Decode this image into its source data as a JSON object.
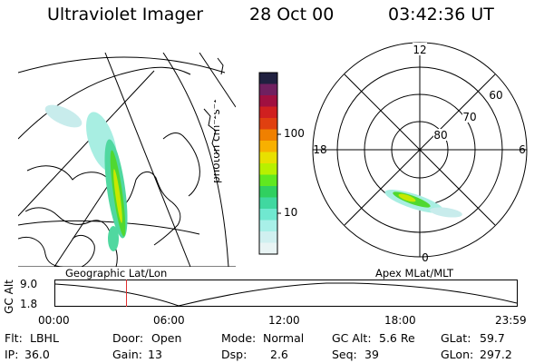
{
  "header": {
    "instrument": "Ultraviolet Imager",
    "date": "28 Oct 00",
    "time": "03:42:36 UT"
  },
  "colorbar": {
    "unit_label": "photon cm⁻²s⁻¹",
    "ticks": [
      "100",
      "10"
    ],
    "colors": [
      "#202040",
      "#702060",
      "#a01040",
      "#d02020",
      "#e04010",
      "#f08000",
      "#f8b000",
      "#e8e000",
      "#b8f000",
      "#60e820",
      "#30d060",
      "#40d8a0",
      "#70e8d0",
      "#a8f0e8",
      "#d0f0f0",
      "#e8f4f4"
    ]
  },
  "left_map": {
    "caption": "Geographic Lat/Lon"
  },
  "polar_plot": {
    "caption": "Apex MLat/MLT",
    "mlt_labels": {
      "top": "12",
      "right": "6",
      "bottom": "0",
      "left": "18"
    },
    "lat_labels": [
      "60",
      "70",
      "80"
    ]
  },
  "altitude_timeline": {
    "axis_label": "GC Alt",
    "y_ticks": [
      "9.0",
      "1.8"
    ],
    "x_ticks": [
      "00:00",
      "06:00",
      "12:00",
      "18:00",
      "23:59"
    ],
    "marker_time": "03:42",
    "curve_color": "#000000",
    "marker_color": "#e03030"
  },
  "status": {
    "filter_key": "Flt:",
    "filter_val": "LBHL",
    "door_key": "Door:",
    "door_val": "Open",
    "mode_key": "Mode:",
    "mode_val": "Normal",
    "gcalt_key": "GC Alt:",
    "gcalt_val": "5.6 Re",
    "glat_key": "GLat:",
    "glat_val": "59.7",
    "ip_key": "IP:",
    "ip_val": "36.0",
    "gain_key": "Gain:",
    "gain_val": "13",
    "dsp_key": "Dsp:",
    "dsp_val": "2.6",
    "seq_key": "Seq:",
    "seq_val": "39",
    "glon_key": "GLon:",
    "glon_val": "297.2"
  }
}
